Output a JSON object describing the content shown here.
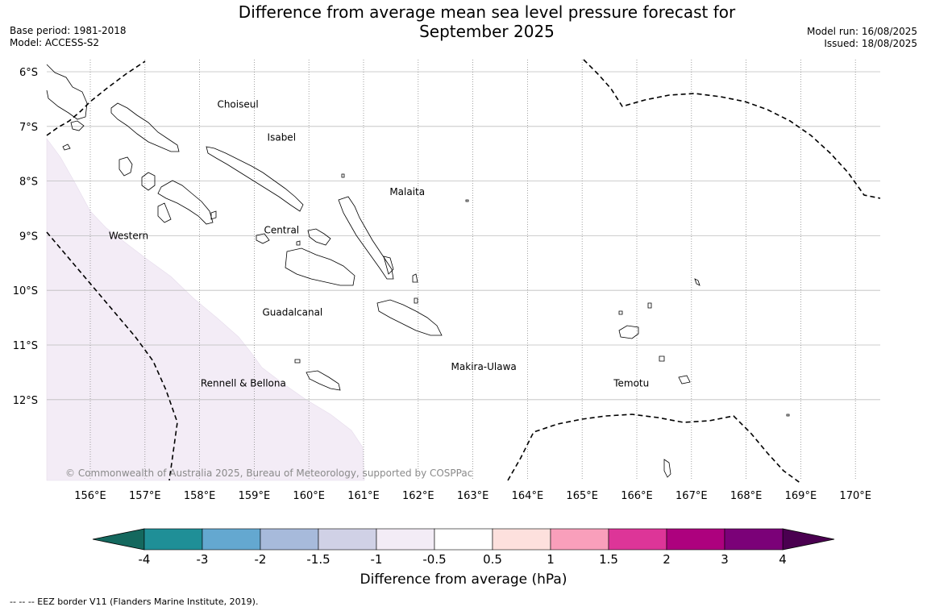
{
  "title": {
    "line1": "Difference from average mean sea level pressure forecast for",
    "line2": "September 2025"
  },
  "meta": {
    "base_period": "Base period: 1981-2018",
    "model": "Model: ACCESS-S2",
    "model_run": "Model run: 16/08/2025",
    "issued": "Issued: 18/08/2025"
  },
  "map": {
    "lat_labels": [
      "6°S",
      "7°S",
      "8°S",
      "9°S",
      "10°S",
      "11°S",
      "12°S"
    ],
    "lon_labels": [
      "156°E",
      "157°E",
      "158°E",
      "159°E",
      "160°E",
      "161°E",
      "162°E",
      "163°E",
      "164°E",
      "165°E",
      "166°E",
      "167°E",
      "168°E",
      "169°E",
      "170°E"
    ],
    "places": [
      {
        "name": "Choiseul",
        "lon": 158.7,
        "lat": -6.6
      },
      {
        "name": "Isabel",
        "lon": 159.5,
        "lat": -7.2
      },
      {
        "name": "Malaita",
        "lon": 161.8,
        "lat": -8.2
      },
      {
        "name": "Western",
        "lon": 156.7,
        "lat": -9.0
      },
      {
        "name": "Central",
        "lon": 159.5,
        "lat": -8.9
      },
      {
        "name": "Guadalcanal",
        "lon": 159.7,
        "lat": -10.4
      },
      {
        "name": "Makira-Ulawa",
        "lon": 163.2,
        "lat": -11.4
      },
      {
        "name": "Temotu",
        "lon": 165.9,
        "lat": -11.7
      },
      {
        "name": "Rennell & Bellona",
        "lon": 158.8,
        "lat": -11.7
      }
    ],
    "anomaly_region": "-1 to -0.5",
    "copyright": "© Commonwealth of Australia 2025, Bureau of Meteorology, supported by COSPPac"
  },
  "colorbar": {
    "label": "Difference from average (hPa)",
    "ticks": [
      "-4",
      "-3",
      "-2",
      "-1.5",
      "-1",
      "-0.5",
      "0.5",
      "1",
      "1.5",
      "2",
      "3",
      "4"
    ],
    "colors": [
      "#14685e",
      "#1f8f97",
      "#64a8d0",
      "#a7badb",
      "#d0d1e6",
      "#f3ecf6",
      "#ffffff",
      "#fde0dd",
      "#f99fbb",
      "#dd3598",
      "#ad017e",
      "#7b0178",
      "#4a0050"
    ]
  },
  "footnote": "--  --  -- EEZ border V11 (Flanders Marine Institute, 2019)."
}
